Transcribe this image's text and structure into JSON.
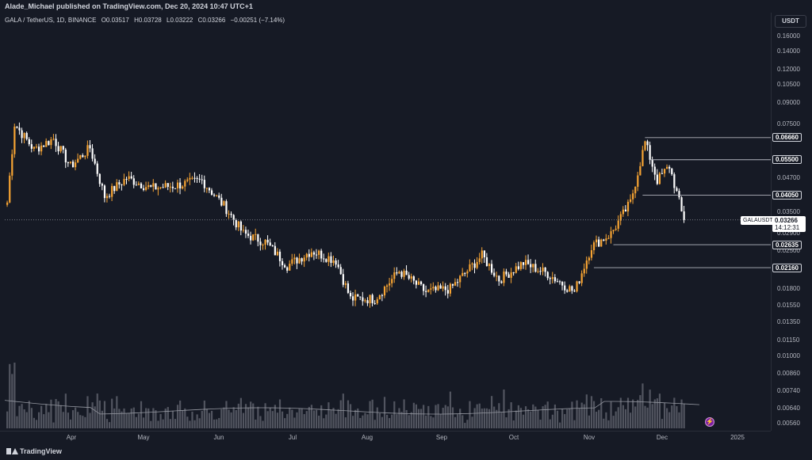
{
  "header": {
    "published": "Alade_Michael published on TradingView.com, Dec 20, 2024 10:47 UTC+1"
  },
  "symbol": {
    "pair": "GALA / TetherUS, 1D, BINANCE",
    "open": "O0.03517",
    "high": "H0.03728",
    "low": "L0.03222",
    "close": "C0.03266",
    "change": "−0.00251 (−7.14%)"
  },
  "price_scale": {
    "currency": "USDT",
    "labels": [
      "0.16000",
      "0.14000",
      "0.12000",
      "0.10500",
      "0.09000",
      "0.07500",
      "0.06660",
      "0.05500",
      "0.04700",
      "0.04050",
      "0.03500",
      "0.03266",
      "0.02900",
      "0.02635",
      "0.02500",
      "0.02160",
      "0.01800",
      "0.01550",
      "0.01350",
      "0.01150",
      "0.01000",
      "0.00860",
      "0.00740",
      "0.00640",
      "0.00560"
    ]
  },
  "levels": [
    "0.06660",
    "0.05500",
    "0.04050",
    "0.02635",
    "0.02160"
  ],
  "current": {
    "pair": "GALAUSDT",
    "price": "0.03266",
    "countdown": "14:12:31"
  },
  "time_axis": [
    "Apr",
    "May",
    "Jun",
    "Jul",
    "Aug",
    "Sep",
    "Oct",
    "Nov",
    "Dec",
    "2025"
  ],
  "footer": {
    "brand": "TradingView"
  },
  "colors": {
    "background": "#161a25",
    "up": "#f7a433",
    "down": "#ffffff",
    "volume": "#5d606b"
  },
  "chart_data": {
    "type": "candlestick",
    "title": "",
    "scale": "log",
    "ylim": [
      0.0053,
      0.17
    ],
    "x": "daily, Mar 2024 – Dec 20 2024",
    "close_path": [
      {
        "date": "2024-03-17",
        "value": 0.038
      },
      {
        "date": "2024-03-20",
        "value": 0.075
      },
      {
        "date": "2024-03-28",
        "value": 0.06
      },
      {
        "date": "2024-04-05",
        "value": 0.066
      },
      {
        "date": "2024-04-12",
        "value": 0.052
      },
      {
        "date": "2024-04-20",
        "value": 0.061
      },
      {
        "date": "2024-04-26",
        "value": 0.04
      },
      {
        "date": "2024-05-05",
        "value": 0.047
      },
      {
        "date": "2024-05-15",
        "value": 0.043
      },
      {
        "date": "2024-05-25",
        "value": 0.044
      },
      {
        "date": "2024-06-05",
        "value": 0.046
      },
      {
        "date": "2024-06-15",
        "value": 0.036
      },
      {
        "date": "2024-06-22",
        "value": 0.029
      },
      {
        "date": "2024-07-01",
        "value": 0.027
      },
      {
        "date": "2024-07-10",
        "value": 0.022
      },
      {
        "date": "2024-07-20",
        "value": 0.025
      },
      {
        "date": "2024-07-30",
        "value": 0.023
      },
      {
        "date": "2024-08-05",
        "value": 0.0165
      },
      {
        "date": "2024-08-15",
        "value": 0.0165
      },
      {
        "date": "2024-08-25",
        "value": 0.021
      },
      {
        "date": "2024-09-05",
        "value": 0.0175
      },
      {
        "date": "2024-09-15",
        "value": 0.018
      },
      {
        "date": "2024-09-28",
        "value": 0.024
      },
      {
        "date": "2024-10-05",
        "value": 0.0195
      },
      {
        "date": "2024-10-15",
        "value": 0.0225
      },
      {
        "date": "2024-10-25",
        "value": 0.0205
      },
      {
        "date": "2024-11-05",
        "value": 0.0175
      },
      {
        "date": "2024-11-12",
        "value": 0.026
      },
      {
        "date": "2024-11-20",
        "value": 0.029
      },
      {
        "date": "2024-11-28",
        "value": 0.038
      },
      {
        "date": "2024-12-04",
        "value": 0.064
      },
      {
        "date": "2024-12-09",
        "value": 0.046
      },
      {
        "date": "2024-12-14",
        "value": 0.052
      },
      {
        "date": "2024-12-20",
        "value": 0.03266
      }
    ]
  }
}
